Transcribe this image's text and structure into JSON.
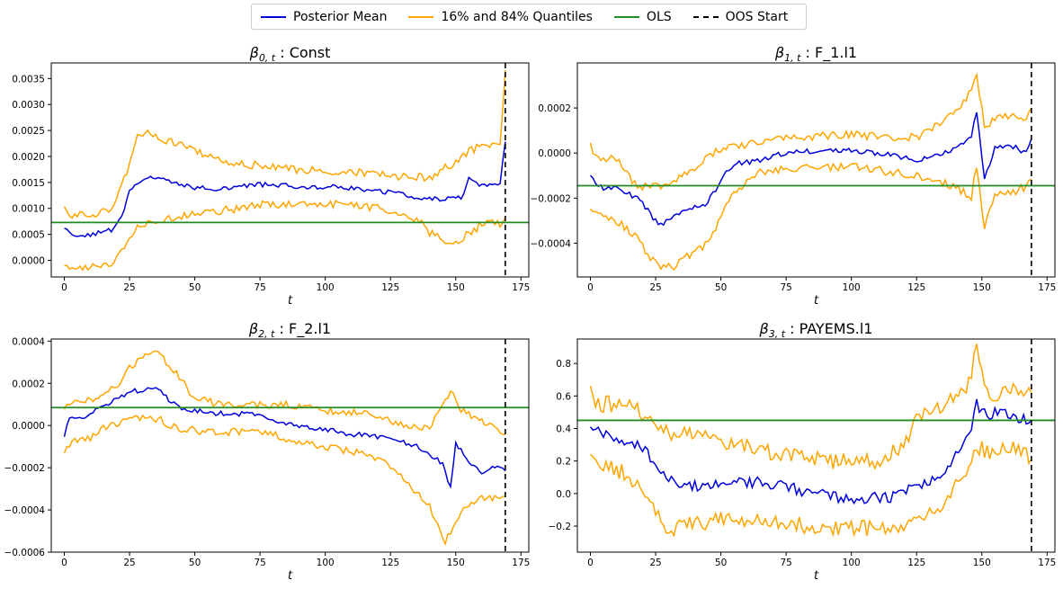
{
  "legend": {
    "posterior": "Posterior Mean",
    "quantiles": "16% and 84% Quantiles",
    "ols": "OLS",
    "oos": "OOS Start"
  },
  "colors": {
    "posterior": "#0000dd",
    "quantiles": "#ffa500",
    "ols": "#228b22",
    "oos": "#000000"
  },
  "chart_data": [
    {
      "type": "line",
      "title_symbol": "β",
      "title_sub": "0, t",
      "title_name": " : Const",
      "xlabel": "t",
      "xlim": [
        -5,
        178
      ],
      "ylim": [
        -0.00032,
        0.0038
      ],
      "xticks": [
        0,
        25,
        50,
        75,
        100,
        125,
        150,
        175
      ],
      "xtick_labels": [
        "0",
        "25",
        "50",
        "75",
        "100",
        "125",
        "150",
        "175"
      ],
      "yticks": [
        0,
        0.0005,
        0.001,
        0.0015,
        0.002,
        0.0025,
        0.003,
        0.0035
      ],
      "ytick_labels": [
        "0.0000",
        "0.0005",
        "0.0010",
        "0.0015",
        "0.0020",
        "0.0025",
        "0.0030",
        "0.0035"
      ],
      "ols": 0.00073,
      "oos_start": 169,
      "posterior_knots": [
        [
          0,
          0.0006
        ],
        [
          3,
          0.00045
        ],
        [
          10,
          0.00048
        ],
        [
          18,
          0.00058
        ],
        [
          22,
          0.00085
        ],
        [
          25,
          0.0013
        ],
        [
          28,
          0.0015
        ],
        [
          32,
          0.0016
        ],
        [
          40,
          0.00155
        ],
        [
          50,
          0.0014
        ],
        [
          60,
          0.00137
        ],
        [
          75,
          0.00145
        ],
        [
          90,
          0.00143
        ],
        [
          110,
          0.0014
        ],
        [
          125,
          0.0013
        ],
        [
          140,
          0.00118
        ],
        [
          152,
          0.0012
        ],
        [
          155,
          0.00155
        ],
        [
          160,
          0.00145
        ],
        [
          167,
          0.00148
        ],
        [
          169,
          0.0023
        ]
      ],
      "upper_knots": [
        [
          0,
          0.00105
        ],
        [
          3,
          0.00085
        ],
        [
          10,
          0.00088
        ],
        [
          18,
          0.001
        ],
        [
          22,
          0.0014
        ],
        [
          25,
          0.0019
        ],
        [
          28,
          0.0024
        ],
        [
          32,
          0.00245
        ],
        [
          40,
          0.0023
        ],
        [
          50,
          0.0021
        ],
        [
          60,
          0.0019
        ],
        [
          75,
          0.00182
        ],
        [
          90,
          0.00175
        ],
        [
          110,
          0.0017
        ],
        [
          125,
          0.00163
        ],
        [
          140,
          0.0016
        ],
        [
          150,
          0.0019
        ],
        [
          155,
          0.0021
        ],
        [
          160,
          0.0022
        ],
        [
          167,
          0.00222
        ],
        [
          169,
          0.0036
        ]
      ],
      "lower_knots": [
        [
          0,
          -0.0001
        ],
        [
          5,
          -0.00012
        ],
        [
          10,
          -0.0001
        ],
        [
          18,
          -8e-05
        ],
        [
          22,
          0.0002
        ],
        [
          25,
          0.0004
        ],
        [
          28,
          0.0006
        ],
        [
          32,
          0.00075
        ],
        [
          40,
          0.0008
        ],
        [
          50,
          0.0009
        ],
        [
          60,
          0.00095
        ],
        [
          75,
          0.00108
        ],
        [
          90,
          0.0011
        ],
        [
          110,
          0.00108
        ],
        [
          125,
          0.00095
        ],
        [
          135,
          0.0008
        ],
        [
          140,
          0.00055
        ],
        [
          148,
          0.0003
        ],
        [
          155,
          0.0005
        ],
        [
          160,
          0.0007
        ],
        [
          167,
          0.00072
        ],
        [
          169,
          0.00085
        ]
      ],
      "noise": 5e-05,
      "qnoise": 8e-05
    },
    {
      "type": "line",
      "title_symbol": "β",
      "title_sub": "1, t",
      "title_name": " : F_1.l1",
      "xlabel": "t",
      "xlim": [
        -5,
        178
      ],
      "ylim": [
        -0.00055,
        0.0004
      ],
      "xticks": [
        0,
        25,
        50,
        75,
        100,
        125,
        150,
        175
      ],
      "xtick_labels": [
        "0",
        "25",
        "50",
        "75",
        "100",
        "125",
        "150",
        "175"
      ],
      "yticks": [
        -0.0004,
        -0.0002,
        0,
        0.0002
      ],
      "ytick_labels": [
        "−0.0004",
        "−0.0002",
        "0.0000",
        "0.0002"
      ],
      "ols": -0.000145,
      "oos_start": 169,
      "posterior_knots": [
        [
          0,
          -0.0001
        ],
        [
          3,
          -0.00015
        ],
        [
          10,
          -0.00016
        ],
        [
          18,
          -0.0002
        ],
        [
          22,
          -0.00025
        ],
        [
          26,
          -0.00032
        ],
        [
          30,
          -0.0003
        ],
        [
          38,
          -0.00025
        ],
        [
          45,
          -0.00022
        ],
        [
          50,
          -0.00012
        ],
        [
          55,
          -5e-05
        ],
        [
          65,
          -3e-05
        ],
        [
          75,
          0
        ],
        [
          90,
          1e-05
        ],
        [
          100,
          1e-05
        ],
        [
          110,
          0
        ],
        [
          125,
          -3e-05
        ],
        [
          140,
          2e-05
        ],
        [
          146,
          8e-05
        ],
        [
          148,
          0.00018
        ],
        [
          151,
          -0.00012
        ],
        [
          155,
          2e-05
        ],
        [
          160,
          4e-05
        ],
        [
          167,
          0
        ],
        [
          169,
          6e-05
        ]
      ],
      "upper_knots": [
        [
          0,
          3e-05
        ],
        [
          3,
          -2e-05
        ],
        [
          10,
          -3e-05
        ],
        [
          18,
          -0.00015
        ],
        [
          30,
          -0.00015
        ],
        [
          38,
          -8e-05
        ],
        [
          45,
          -2e-05
        ],
        [
          50,
          2e-05
        ],
        [
          60,
          4e-05
        ],
        [
          75,
          7e-05
        ],
        [
          100,
          8e-05
        ],
        [
          125,
          7e-05
        ],
        [
          140,
          0.00018
        ],
        [
          146,
          0.00028
        ],
        [
          148,
          0.00035
        ],
        [
          151,
          0.00012
        ],
        [
          155,
          0.00015
        ],
        [
          160,
          0.00016
        ],
        [
          167,
          0.00015
        ],
        [
          169,
          0.00019
        ]
      ],
      "lower_knots": [
        [
          0,
          -0.00025
        ],
        [
          3,
          -0.00026
        ],
        [
          10,
          -0.0003
        ],
        [
          18,
          -0.00038
        ],
        [
          22,
          -0.00045
        ],
        [
          26,
          -0.0005
        ],
        [
          32,
          -0.0005
        ],
        [
          38,
          -0.00045
        ],
        [
          45,
          -0.0004
        ],
        [
          50,
          -0.00028
        ],
        [
          55,
          -0.00018
        ],
        [
          65,
          -8e-05
        ],
        [
          75,
          -7e-05
        ],
        [
          100,
          -6e-05
        ],
        [
          125,
          -0.0001
        ],
        [
          140,
          -0.00015
        ],
        [
          146,
          -0.0002
        ],
        [
          148,
          -5e-05
        ],
        [
          151,
          -0.00032
        ],
        [
          155,
          -0.00018
        ],
        [
          160,
          -0.00018
        ],
        [
          167,
          -0.00015
        ],
        [
          169,
          -0.00012
        ]
      ],
      "noise": 1.2e-05,
      "qnoise": 1.8e-05
    },
    {
      "type": "line",
      "title_symbol": "β",
      "title_sub": "2, t",
      "title_name": " : F_2.l1",
      "xlabel": "t",
      "xlim": [
        -5,
        178
      ],
      "ylim": [
        -0.0006,
        0.00041
      ],
      "xticks": [
        0,
        25,
        50,
        75,
        100,
        125,
        150,
        175
      ],
      "xtick_labels": [
        "0",
        "25",
        "50",
        "75",
        "100",
        "125",
        "150",
        "175"
      ],
      "yticks": [
        -0.0006,
        -0.0004,
        -0.0002,
        0,
        0.0002,
        0.0004
      ],
      "ytick_labels": [
        "−0.0006",
        "−0.0004",
        "−0.0002",
        "0.0000",
        "0.0002",
        "0.0004"
      ],
      "ols": 8.5e-05,
      "oos_start": 169,
      "posterior_knots": [
        [
          0,
          -5e-05
        ],
        [
          2,
          4e-05
        ],
        [
          6,
          4e-05
        ],
        [
          10,
          5e-05
        ],
        [
          15,
          0.0001
        ],
        [
          20,
          0.00012
        ],
        [
          25,
          0.00016
        ],
        [
          30,
          0.00017
        ],
        [
          36,
          0.00017
        ],
        [
          40,
          0.00012
        ],
        [
          45,
          8e-05
        ],
        [
          55,
          6e-05
        ],
        [
          75,
          5e-05
        ],
        [
          85,
          1e-05
        ],
        [
          100,
          -2e-05
        ],
        [
          110,
          -4e-05
        ],
        [
          125,
          -6e-05
        ],
        [
          135,
          -0.0001
        ],
        [
          145,
          -0.00018
        ],
        [
          148,
          -0.0003
        ],
        [
          150,
          -8e-05
        ],
        [
          155,
          -0.00018
        ],
        [
          160,
          -0.00022
        ],
        [
          165,
          -0.00019
        ],
        [
          169,
          -0.00022
        ]
      ],
      "upper_knots": [
        [
          0,
          8e-05
        ],
        [
          3,
          0.00012
        ],
        [
          10,
          0.00012
        ],
        [
          20,
          0.00018
        ],
        [
          25,
          0.00028
        ],
        [
          30,
          0.00032
        ],
        [
          36,
          0.00035
        ],
        [
          42,
          0.00026
        ],
        [
          50,
          0.00013
        ],
        [
          60,
          0.0001
        ],
        [
          85,
          0.0001
        ],
        [
          100,
          7e-05
        ],
        [
          120,
          5e-05
        ],
        [
          130,
          0
        ],
        [
          140,
          -2e-05
        ],
        [
          148,
          0.00016
        ],
        [
          152,
          8e-05
        ],
        [
          160,
          2e-05
        ],
        [
          169,
          -5e-05
        ]
      ],
      "lower_knots": [
        [
          0,
          -0.00012
        ],
        [
          3,
          -7e-05
        ],
        [
          10,
          -6e-05
        ],
        [
          15,
          -1e-05
        ],
        [
          25,
          3e-05
        ],
        [
          36,
          3e-05
        ],
        [
          45,
          -2e-05
        ],
        [
          60,
          -3e-05
        ],
        [
          75,
          -3e-05
        ],
        [
          85,
          -6e-05
        ],
        [
          100,
          -0.0001
        ],
        [
          120,
          -0.00015
        ],
        [
          130,
          -0.00025
        ],
        [
          140,
          -0.00038
        ],
        [
          146,
          -0.00055
        ],
        [
          150,
          -0.00045
        ],
        [
          155,
          -0.00038
        ],
        [
          160,
          -0.00035
        ],
        [
          169,
          -0.00035
        ]
      ],
      "noise": 1.2e-05,
      "qnoise": 1.8e-05
    },
    {
      "type": "line",
      "title_symbol": "β",
      "title_sub": "3, t",
      "title_name": " : PAYEMS.l1",
      "xlabel": "t",
      "xlim": [
        -5,
        178
      ],
      "ylim": [
        -0.36,
        0.95
      ],
      "xticks": [
        0,
        25,
        50,
        75,
        100,
        125,
        150,
        175
      ],
      "xtick_labels": [
        "0",
        "25",
        "50",
        "75",
        "100",
        "125",
        "150",
        "175"
      ],
      "yticks": [
        -0.2,
        0,
        0.2,
        0.4,
        0.6,
        0.8
      ],
      "ytick_labels": [
        "−0.2",
        "0.0",
        "0.2",
        "0.4",
        "0.6",
        "0.8"
      ],
      "ols": 0.45,
      "oos_start": 169,
      "posterior_knots": [
        [
          0,
          0.43
        ],
        [
          3,
          0.38
        ],
        [
          10,
          0.33
        ],
        [
          18,
          0.3
        ],
        [
          25,
          0.2
        ],
        [
          28,
          0.1
        ],
        [
          35,
          0.05
        ],
        [
          45,
          0.05
        ],
        [
          55,
          0.08
        ],
        [
          70,
          0.06
        ],
        [
          80,
          0.02
        ],
        [
          90,
          0
        ],
        [
          100,
          -0.04
        ],
        [
          115,
          -0.02
        ],
        [
          125,
          0.05
        ],
        [
          135,
          0.12
        ],
        [
          145,
          0.35
        ],
        [
          148,
          0.55
        ],
        [
          152,
          0.48
        ],
        [
          155,
          0.5
        ],
        [
          160,
          0.48
        ],
        [
          165,
          0.46
        ],
        [
          169,
          0.44
        ]
      ],
      "upper_knots": [
        [
          0,
          0.62
        ],
        [
          3,
          0.55
        ],
        [
          10,
          0.55
        ],
        [
          20,
          0.5
        ],
        [
          25,
          0.4
        ],
        [
          28,
          0.38
        ],
        [
          40,
          0.35
        ],
        [
          55,
          0.3
        ],
        [
          70,
          0.25
        ],
        [
          90,
          0.2
        ],
        [
          110,
          0.2
        ],
        [
          120,
          0.3
        ],
        [
          125,
          0.45
        ],
        [
          135,
          0.55
        ],
        [
          145,
          0.68
        ],
        [
          148,
          0.88
        ],
        [
          152,
          0.6
        ],
        [
          160,
          0.62
        ],
        [
          169,
          0.66
        ]
      ],
      "lower_knots": [
        [
          0,
          0.22
        ],
        [
          3,
          0.2
        ],
        [
          10,
          0.15
        ],
        [
          20,
          0.05
        ],
        [
          25,
          -0.1
        ],
        [
          28,
          -0.22
        ],
        [
          35,
          -0.2
        ],
        [
          45,
          -0.17
        ],
        [
          55,
          -0.15
        ],
        [
          70,
          -0.18
        ],
        [
          85,
          -0.2
        ],
        [
          100,
          -0.22
        ],
        [
          115,
          -0.2
        ],
        [
          125,
          -0.17
        ],
        [
          130,
          -0.12
        ],
        [
          135,
          -0.05
        ],
        [
          140,
          0.05
        ],
        [
          145,
          0.15
        ],
        [
          148,
          0.3
        ],
        [
          152,
          0.25
        ],
        [
          160,
          0.3
        ],
        [
          169,
          0.22
        ]
      ],
      "noise": 0.035,
      "qnoise": 0.05
    }
  ]
}
